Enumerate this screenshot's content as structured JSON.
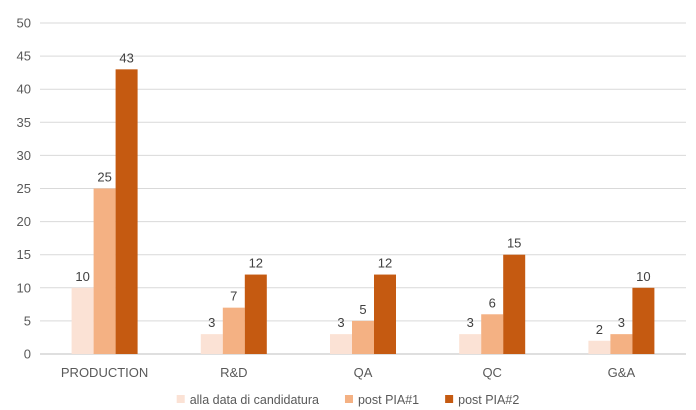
{
  "chart_data": {
    "type": "bar",
    "categories": [
      "PRODUCTION",
      "R&D",
      "QA",
      "QC",
      "G&A"
    ],
    "series": [
      {
        "name": "alla data di candidatura",
        "values": [
          10,
          3,
          3,
          3,
          2
        ],
        "color": "#FBE2D5"
      },
      {
        "name": "post PIA#1",
        "values": [
          25,
          7,
          5,
          6,
          3
        ],
        "color": "#F4B183"
      },
      {
        "name": "post PIA#2",
        "values": [
          43,
          12,
          12,
          15,
          10
        ],
        "color": "#C55A11"
      }
    ],
    "ylim": [
      0,
      50
    ],
    "yticks": [
      0,
      5,
      10,
      15,
      20,
      25,
      30,
      35,
      40,
      45,
      50
    ],
    "grid": true,
    "legend_position": "bottom",
    "data_labels": true,
    "title": "",
    "xlabel": "",
    "ylabel": ""
  }
}
